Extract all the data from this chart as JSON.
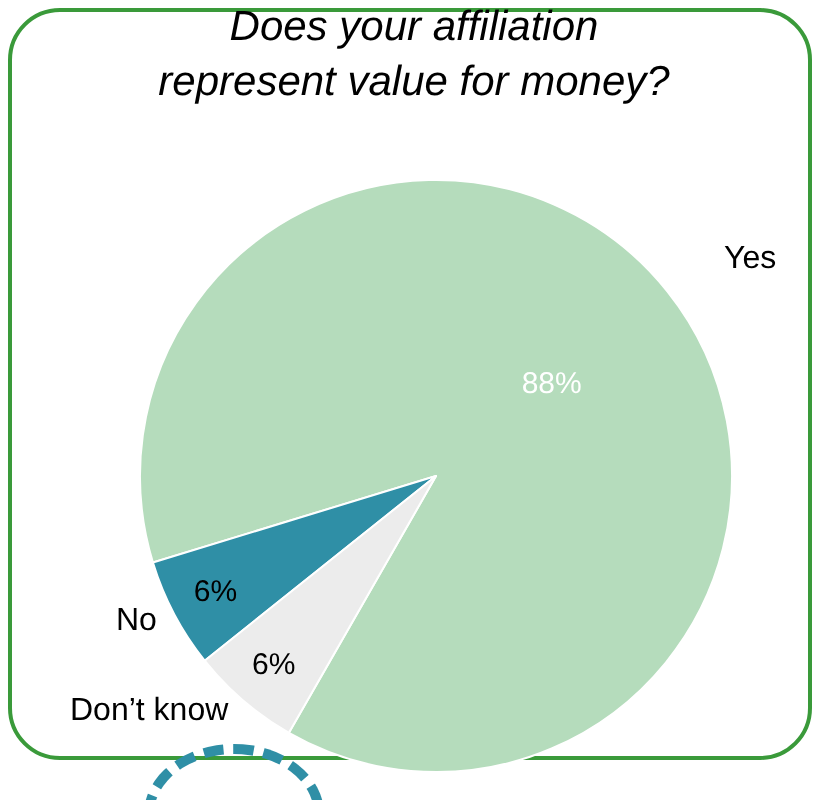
{
  "chart_data": {
    "type": "pie",
    "title": "Does your affiliation represent value for money?",
    "categories": [
      "Yes",
      "No",
      "Don’t know"
    ],
    "values": [
      88,
      6,
      6
    ],
    "value_labels": [
      "88%",
      "6%",
      "6%"
    ],
    "colors": [
      "#b5dcbc",
      "#2f8fa6",
      "#ececec"
    ],
    "legend": false
  }
}
